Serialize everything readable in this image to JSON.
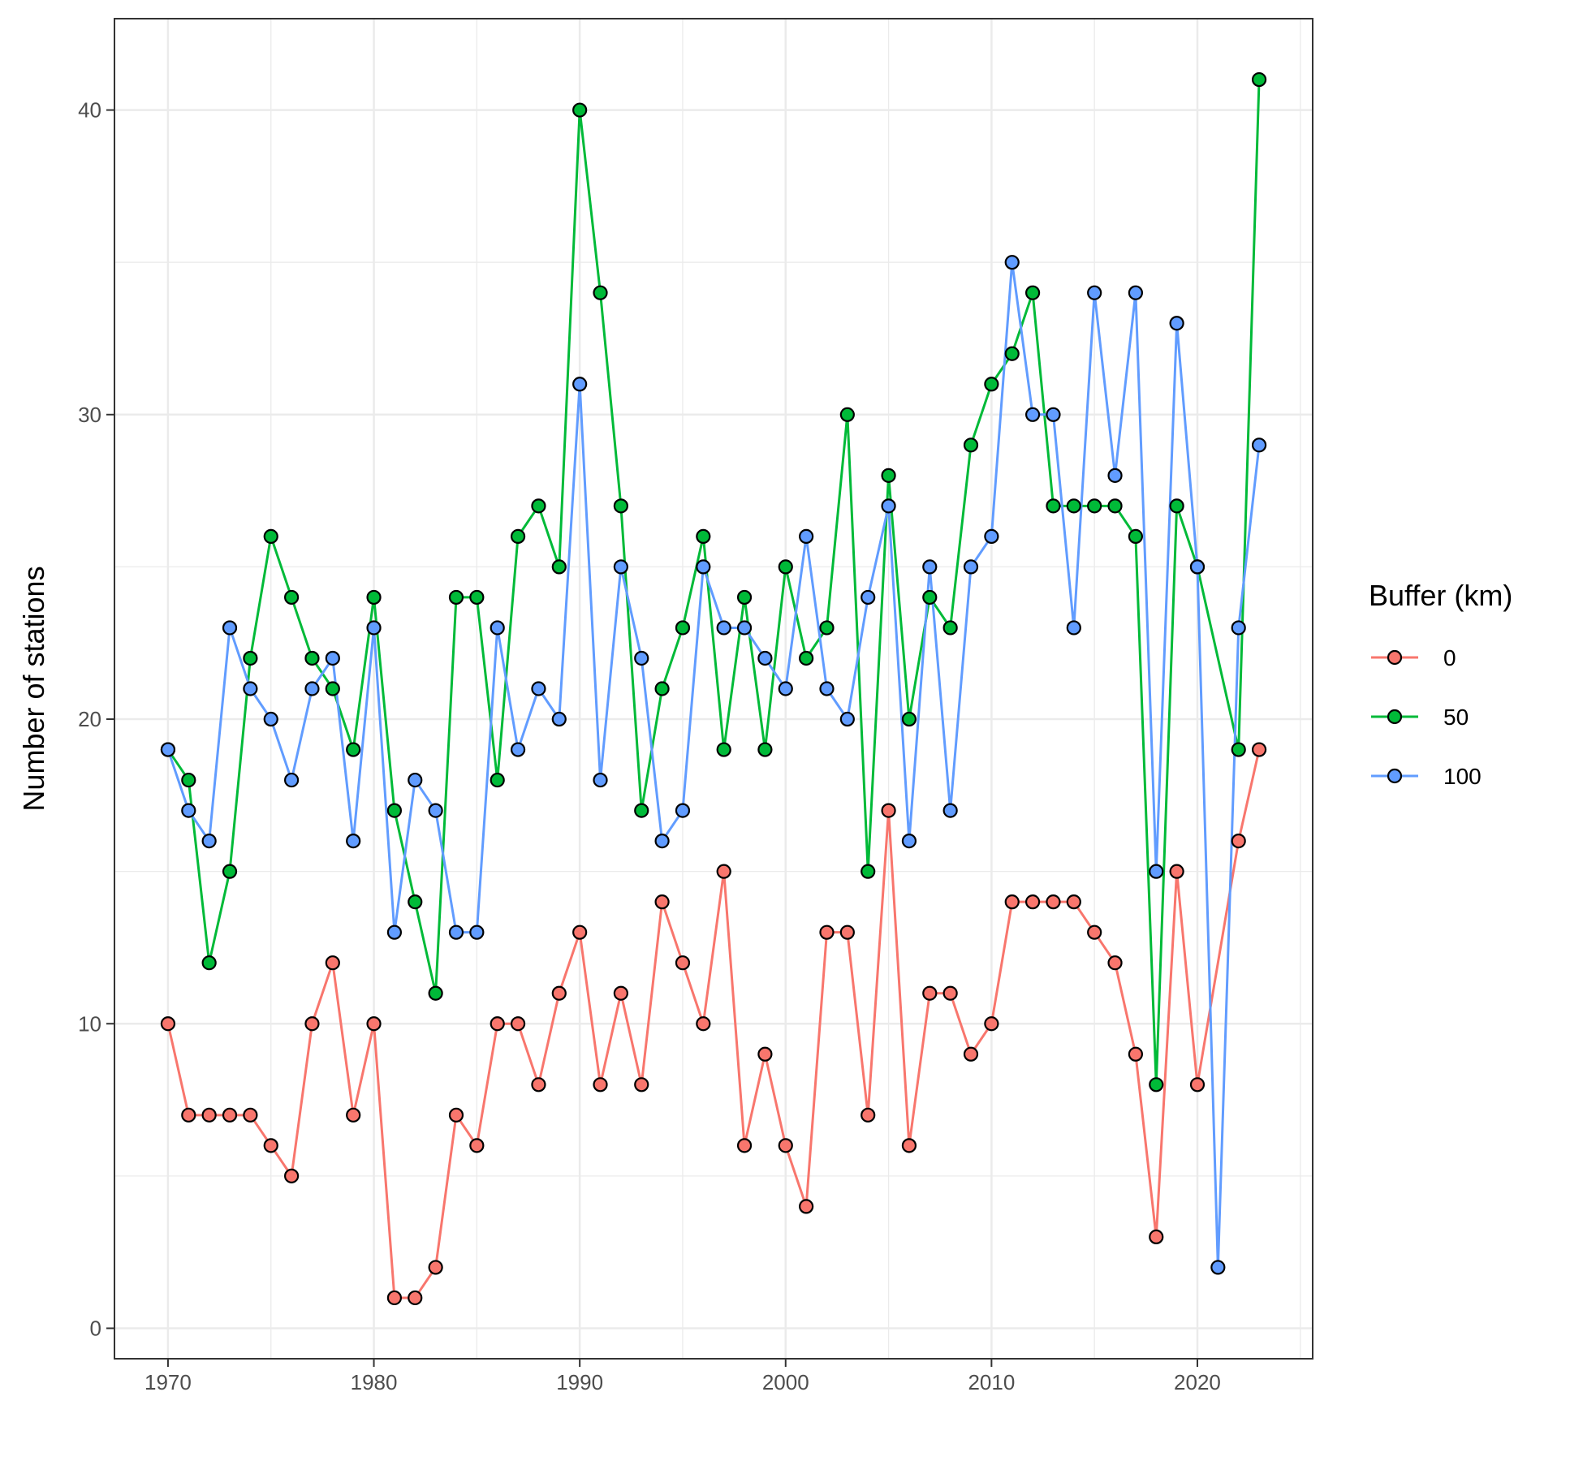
{
  "chart_data": {
    "type": "line",
    "title": "",
    "xlabel": "",
    "ylabel": "Number of stations",
    "xlim": [
      1967.4,
      2025.6
    ],
    "ylim": [
      -1,
      43
    ],
    "x_ticks": [
      1970,
      1980,
      1990,
      2000,
      2010,
      2020
    ],
    "y_ticks": [
      0,
      10,
      20,
      30,
      40
    ],
    "grid": true,
    "legend": {
      "title": "Buffer (km)",
      "position": "right"
    },
    "x": [
      1970,
      1971,
      1972,
      1973,
      1974,
      1975,
      1976,
      1977,
      1978,
      1979,
      1980,
      1981,
      1982,
      1983,
      1984,
      1985,
      1986,
      1987,
      1988,
      1989,
      1990,
      1991,
      1992,
      1993,
      1994,
      1995,
      1996,
      1997,
      1998,
      1999,
      2000,
      2001,
      2002,
      2003,
      2004,
      2005,
      2006,
      2007,
      2008,
      2009,
      2010,
      2011,
      2012,
      2013,
      2014,
      2015,
      2016,
      2017,
      2018,
      2019,
      2020,
      2021,
      2022,
      2023
    ],
    "series": [
      {
        "name": "0",
        "color": "#F8766D",
        "values": [
          10,
          7,
          7,
          7,
          7,
          6,
          5,
          10,
          12,
          7,
          10,
          1,
          1,
          2,
          7,
          6,
          10,
          10,
          8,
          11,
          13,
          8,
          11,
          8,
          14,
          12,
          10,
          15,
          6,
          9,
          6,
          4,
          13,
          13,
          7,
          17,
          6,
          11,
          11,
          9,
          10,
          14,
          14,
          14,
          14,
          13,
          12,
          9,
          3,
          15,
          8,
          null,
          16,
          19
        ]
      },
      {
        "name": "50",
        "color": "#00BA38",
        "values": [
          19,
          18,
          12,
          15,
          22,
          26,
          24,
          22,
          21,
          19,
          24,
          17,
          14,
          11,
          24,
          24,
          18,
          26,
          27,
          25,
          40,
          34,
          27,
          17,
          21,
          23,
          26,
          19,
          24,
          19,
          25,
          22,
          23,
          30,
          15,
          28,
          20,
          24,
          23,
          29,
          31,
          32,
          34,
          27,
          27,
          27,
          27,
          26,
          8,
          27,
          25,
          null,
          19,
          41
        ]
      },
      {
        "name": "100",
        "color": "#619CFF",
        "values": [
          19,
          17,
          16,
          23,
          21,
          20,
          18,
          21,
          22,
          16,
          23,
          13,
          18,
          17,
          13,
          13,
          23,
          19,
          21,
          20,
          31,
          18,
          25,
          22,
          16,
          17,
          25,
          23,
          23,
          22,
          21,
          26,
          21,
          20,
          24,
          27,
          16,
          25,
          17,
          25,
          26,
          35,
          30,
          30,
          23,
          34,
          28,
          34,
          15,
          33,
          25,
          2,
          23,
          29
        ]
      }
    ]
  }
}
